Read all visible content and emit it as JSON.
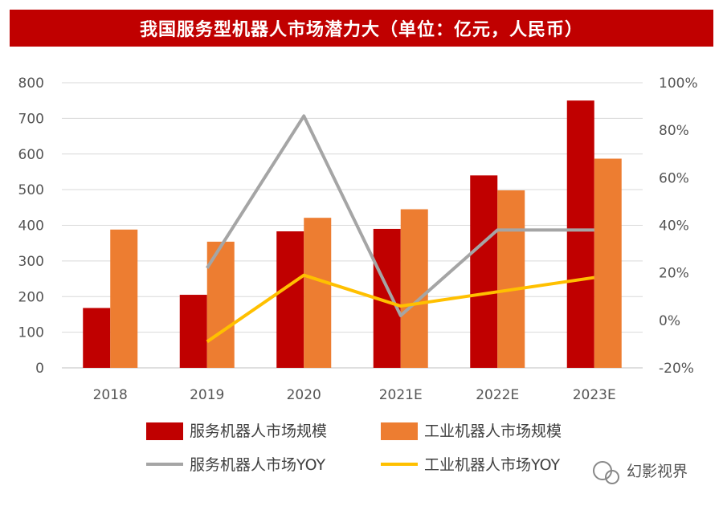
{
  "chart_data": {
    "type": "bar",
    "title": "我国服务型机器人市场潜力大（单位：亿元，人民币）",
    "categories": [
      "2018",
      "2019",
      "2020",
      "2021E",
      "2022E",
      "2023E"
    ],
    "series": [
      {
        "name": "服务机器人市场规模",
        "kind": "bar",
        "axis": "left",
        "color": "#c00000",
        "values": [
          168,
          205,
          383,
          390,
          540,
          750
        ]
      },
      {
        "name": "工业机器人市场规模",
        "kind": "bar",
        "axis": "left",
        "color": "#ed7d31",
        "values": [
          388,
          354,
          421,
          445,
          498,
          587
        ]
      },
      {
        "name": "服务机器人市场YOY",
        "kind": "line",
        "axis": "right",
        "color": "#a5a5a5",
        "values": [
          null,
          22,
          86,
          2,
          38,
          38
        ]
      },
      {
        "name": "工业机器人市场YOY",
        "kind": "line",
        "axis": "right",
        "color": "#ffc000",
        "values": [
          null,
          -9,
          19,
          6,
          12,
          18
        ]
      }
    ],
    "y_left": {
      "min": 0,
      "max": 800,
      "step": 100
    },
    "y_right": {
      "min": -20,
      "max": 100,
      "step": 20,
      "unit": "%"
    },
    "grid": true,
    "legend_position": "bottom"
  },
  "watermark": "幻影视界"
}
